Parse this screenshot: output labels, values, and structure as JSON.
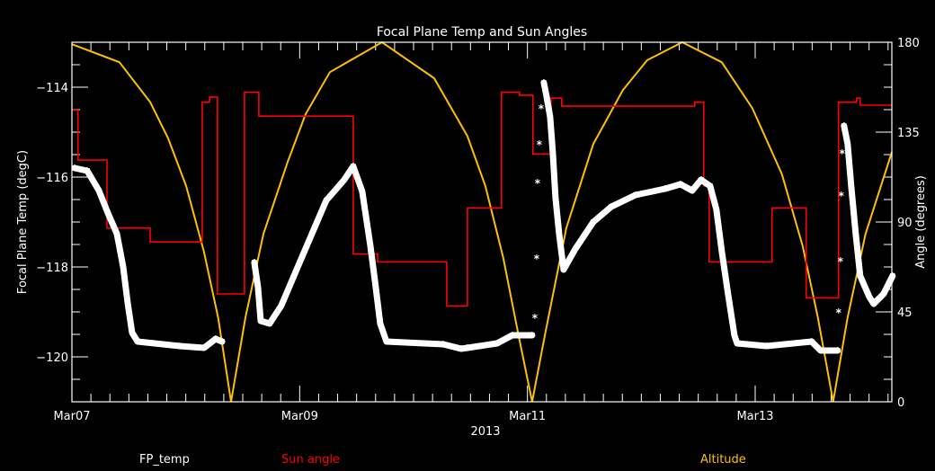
{
  "chart_data": {
    "type": "line",
    "title": "Focal Plane Temp and Sun Angles",
    "xlabel": "2013",
    "ylabel_left": "Focal Plane Temp (degC)",
    "ylabel_right": "Angle (degrees)",
    "xlim": [
      "2013-03-07T00:00",
      "2013-03-14T04:48"
    ],
    "ylim_left": [
      -121,
      -113
    ],
    "ylim_right": [
      0,
      180
    ],
    "grid": false,
    "legend_placement": "bottom",
    "x_ticks": [
      {
        "t": "2013-03-07T00:00",
        "label": "Mar07"
      },
      {
        "t": "2013-03-09T00:00",
        "label": "Mar09"
      },
      {
        "t": "2013-03-11T00:00",
        "label": "Mar11"
      },
      {
        "t": "2013-03-13T00:00",
        "label": "Mar13"
      }
    ],
    "y_ticks_left": [
      {
        "v": -114,
        "label": "−114"
      },
      {
        "v": -116,
        "label": "−116"
      },
      {
        "v": -118,
        "label": "−118"
      },
      {
        "v": -120,
        "label": "−120"
      }
    ],
    "y_ticks_right": [
      {
        "v": 0,
        "label": "0"
      },
      {
        "v": 45,
        "label": "45"
      },
      {
        "v": 90,
        "label": "90"
      },
      {
        "v": 135,
        "label": "135"
      },
      {
        "v": 180,
        "label": "180"
      }
    ],
    "colors": {
      "background": "#000000",
      "axes": "#ffffff",
      "fp_temp": "#ffffff",
      "sun_angle": "#ff0000",
      "altitude": "#ffc000"
    },
    "series": [
      {
        "name": "FP_temp",
        "axis": "left",
        "marker": "asterisk",
        "segments": [
          {
            "points": [
              [
                "2013-03-07T00:34",
                -115.8
              ],
              [
                "2013-03-07T03:13",
                -115.86
              ],
              [
                "2013-03-07T05:41",
                -116.3
              ],
              [
                "2013-03-07T07:35",
                -116.8
              ],
              [
                "2013-03-07T09:28",
                -117.26
              ],
              [
                "2013-03-07T10:48",
                -118.0
              ],
              [
                "2013-03-07T11:45",
                -118.8
              ],
              [
                "2013-03-07T12:41",
                -119.46
              ],
              [
                "2013-03-07T13:50",
                -119.66
              ],
              [
                "2013-03-07T22:44",
                -119.76
              ],
              [
                "2013-03-08T03:51",
                -119.8
              ],
              [
                "2013-03-08T06:18",
                -119.6
              ],
              [
                "2013-03-08T07:38",
                -119.66
              ]
            ]
          },
          {
            "points": [
              [
                "2013-03-08T14:27",
                -117.9
              ],
              [
                "2013-03-08T15:13",
                -118.46
              ],
              [
                "2013-03-08T15:47",
                -119.2
              ],
              [
                "2013-03-08T17:40",
                -119.26
              ],
              [
                "2013-03-08T20:08",
                -118.86
              ],
              [
                "2013-03-08T23:21",
                -118.06
              ],
              [
                "2013-03-09T02:35",
                -117.26
              ],
              [
                "2013-03-09T05:36",
                -116.52
              ],
              [
                "2013-03-09T09:24",
                -116.06
              ],
              [
                "2013-03-09T11:17",
                -115.76
              ],
              [
                "2013-03-09T13:11",
                -116.32
              ],
              [
                "2013-03-09T14:53",
                -117.52
              ],
              [
                "2013-03-09T16:02",
                -118.46
              ],
              [
                "2013-03-09T16:58",
                -119.26
              ],
              [
                "2013-03-09T18:18",
                -119.66
              ],
              [
                "2013-03-10T06:14",
                -119.72
              ],
              [
                "2013-03-10T10:01",
                -119.82
              ],
              [
                "2013-03-10T11:21",
                -119.8
              ],
              [
                "2013-03-10T17:36",
                -119.7
              ],
              [
                "2013-03-10T20:49",
                -119.52
              ],
              [
                "2013-03-11T00:59",
                -119.52
              ]
            ]
          },
          {
            "marker_only": true,
            "points": [
              [
                "2013-03-11T01:34",
                -119.12
              ],
              [
                "2013-03-11T01:56",
                -117.8
              ],
              [
                "2013-03-11T02:07",
                -116.12
              ],
              [
                "2013-03-11T02:30",
                -115.26
              ],
              [
                "2013-03-11T02:53",
                -114.46
              ]
            ]
          },
          {
            "points": [
              [
                "2013-03-11T03:27",
                -113.9
              ],
              [
                "2013-03-11T04:01",
                -114.2
              ],
              [
                "2013-03-11T04:47",
                -114.66
              ],
              [
                "2013-03-11T05:21",
                -115.46
              ],
              [
                "2013-03-11T05:55",
                -116.46
              ],
              [
                "2013-03-11T06:40",
                -117.26
              ],
              [
                "2013-03-11T07:37",
                -118.06
              ],
              [
                "2013-03-11T10:05",
                -117.6
              ],
              [
                "2013-03-11T13:52",
                -117.0
              ],
              [
                "2013-03-11T17:40",
                -116.66
              ],
              [
                "2013-03-11T22:46",
                -116.4
              ],
              [
                "2013-03-12T05:01",
                -116.26
              ],
              [
                "2013-03-12T08:14",
                -116.16
              ],
              [
                "2013-03-12T10:43",
                -116.3
              ],
              [
                "2013-03-12T12:36",
                -116.06
              ],
              [
                "2013-03-12T14:30",
                -116.2
              ],
              [
                "2013-03-12T15:49",
                -116.72
              ],
              [
                "2013-03-12T16:58",
                -117.66
              ],
              [
                "2013-03-12T18:17",
                -118.6
              ],
              [
                "2013-03-12T19:37",
                -119.52
              ],
              [
                "2013-03-12T20:11",
                -119.7
              ],
              [
                "2013-03-13T02:26",
                -119.76
              ],
              [
                "2013-03-13T11:54",
                -119.66
              ],
              [
                "2013-03-13T13:48",
                -119.86
              ],
              [
                "2013-03-13T17:23",
                -119.86
              ]
            ]
          },
          {
            "marker_only": true,
            "points": [
              [
                "2013-03-13T17:35",
                -119.0
              ],
              [
                "2013-03-13T17:58",
                -117.86
              ],
              [
                "2013-03-13T18:09",
                -116.4
              ],
              [
                "2013-03-13T18:20",
                -115.46
              ]
            ]
          },
          {
            "points": [
              [
                "2013-03-13T18:43",
                -114.86
              ],
              [
                "2013-03-13T19:29",
                -115.26
              ],
              [
                "2013-03-13T20:14",
                -116.2
              ],
              [
                "2013-03-13T21:11",
                -117.26
              ],
              [
                "2013-03-13T22:08",
                -118.2
              ],
              [
                "2013-03-14T00:01",
                -118.66
              ],
              [
                "2013-03-14T00:58",
                -118.82
              ],
              [
                "2013-03-14T03:03",
                -118.6
              ],
              [
                "2013-03-14T04:57",
                -118.2
              ]
            ]
          }
        ]
      },
      {
        "name": "Sun angle",
        "axis": "right",
        "style": "step",
        "points": [
          [
            "2013-03-07T00:00",
            146
          ],
          [
            "2013-03-07T01:16",
            121
          ],
          [
            "2013-03-07T07:23",
            87
          ],
          [
            "2013-03-07T16:29",
            80
          ],
          [
            "2013-03-08T03:27",
            150
          ],
          [
            "2013-03-08T05:00",
            152.5
          ],
          [
            "2013-03-08T06:41",
            54
          ],
          [
            "2013-03-08T12:22",
            155
          ],
          [
            "2013-03-08T15:24",
            143
          ],
          [
            "2013-03-09T11:17",
            74
          ],
          [
            "2013-03-09T16:25",
            70
          ],
          [
            "2013-03-10T06:59",
            48
          ],
          [
            "2013-03-10T11:21",
            97
          ],
          [
            "2013-03-10T18:32",
            155
          ],
          [
            "2013-03-10T22:19",
            153.5
          ],
          [
            "2013-03-11T01:10",
            124
          ],
          [
            "2013-03-11T04:58",
            152
          ],
          [
            "2013-03-11T07:14",
            148
          ],
          [
            "2013-03-12T11:16",
            150
          ],
          [
            "2013-03-12T13:10",
            108
          ],
          [
            "2013-03-12T14:18",
            70
          ],
          [
            "2013-03-13T03:33",
            97
          ],
          [
            "2013-03-13T10:45",
            52
          ],
          [
            "2013-03-13T17:34",
            150
          ],
          [
            "2013-03-13T21:22",
            152
          ],
          [
            "2013-03-13T22:07",
            148.5
          ],
          [
            "2013-03-14T04:48",
            148.5
          ]
        ]
      },
      {
        "name": "Altitude",
        "axis": "right",
        "style": "line",
        "points": [
          [
            "2013-03-07T00:00",
            179
          ],
          [
            "2013-03-07T10:00",
            170
          ],
          [
            "2013-03-07T16:30",
            150
          ],
          [
            "2013-03-07T20:15",
            132
          ],
          [
            "2013-03-08T00:05",
            108
          ],
          [
            "2013-03-08T03:50",
            75
          ],
          [
            "2013-03-08T06:50",
            42
          ],
          [
            "2013-03-08T09:32",
            0
          ],
          [
            "2013-03-08T12:33",
            42
          ],
          [
            "2013-03-08T16:21",
            84
          ],
          [
            "2013-03-08T21:27",
            120
          ],
          [
            "2013-03-09T01:15",
            144
          ],
          [
            "2013-03-09T06:22",
            165
          ],
          [
            "2013-03-09T17:21",
            180
          ],
          [
            "2013-03-10T04:20",
            162
          ],
          [
            "2013-03-10T11:21",
            133
          ],
          [
            "2013-03-10T15:08",
            108
          ],
          [
            "2013-03-10T18:55",
            72
          ],
          [
            "2013-03-10T22:09",
            33
          ],
          [
            "2013-03-11T00:59",
            0
          ],
          [
            "2013-03-11T03:49",
            35
          ],
          [
            "2013-03-11T08:11",
            87
          ],
          [
            "2013-03-11T13:52",
            129
          ],
          [
            "2013-03-11T20:07",
            156
          ],
          [
            "2013-03-12T01:13",
            171
          ],
          [
            "2013-03-12T08:37",
            180
          ],
          [
            "2013-03-12T16:57",
            170
          ],
          [
            "2013-03-12T23:24",
            147
          ],
          [
            "2013-03-13T05:38",
            114
          ],
          [
            "2013-03-13T10:00",
            78
          ],
          [
            "2013-03-13T13:13",
            42
          ],
          [
            "2013-03-13T16:26",
            0
          ],
          [
            "2013-03-13T19:28",
            42
          ],
          [
            "2013-03-13T23:15",
            84
          ],
          [
            "2013-03-14T04:48",
            125
          ]
        ]
      }
    ]
  }
}
